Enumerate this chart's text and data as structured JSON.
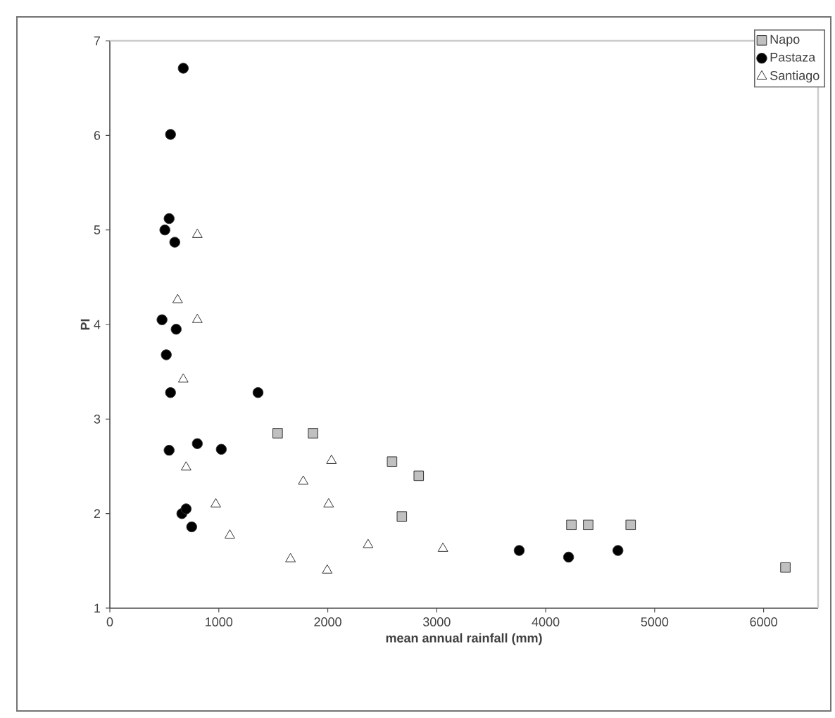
{
  "chart_data": {
    "type": "scatter",
    "xlabel": "mean annual rainfall (mm)",
    "ylabel": "PI",
    "xlim": [
      0,
      6500
    ],
    "ylim": [
      1,
      7
    ],
    "xticks": [
      0,
      1000,
      2000,
      3000,
      4000,
      5000,
      6000
    ],
    "yticks": [
      1,
      2,
      3,
      4,
      5,
      6,
      7
    ],
    "grid": false,
    "legend": "top right",
    "series": [
      {
        "name": "Napo",
        "color": "#c0c0c0",
        "marker": "square",
        "x": [
          1540,
          1865,
          2590,
          2835,
          2680,
          4236,
          4390,
          4780,
          6200
        ],
        "values": [
          2.85,
          2.85,
          2.55,
          2.4,
          1.97,
          1.88,
          1.88,
          1.88,
          1.43
        ]
      },
      {
        "name": "Pastaza",
        "color": "#000000",
        "marker": "circle",
        "x": [
          674,
          557,
          544,
          505,
          596,
          479,
          609,
          518,
          557,
          1360,
          544,
          803,
          1023,
          661,
          700,
          751,
          3757,
          4210,
          4663
        ],
        "values": [
          6.71,
          6.01,
          5.12,
          5.0,
          4.87,
          4.05,
          3.95,
          3.68,
          3.28,
          3.28,
          2.67,
          2.74,
          2.68,
          2.0,
          2.05,
          1.86,
          1.61,
          1.54,
          1.61
        ]
      },
      {
        "name": "Santiago",
        "color": "#ffffff",
        "marker": "triangle",
        "x": [
          803,
          622,
          803,
          674,
          700,
          972,
          1101,
          1658,
          1995,
          1775,
          2034,
          2008,
          2370,
          3057
        ],
        "values": [
          4.95,
          4.26,
          4.05,
          3.42,
          2.49,
          2.1,
          1.77,
          1.52,
          1.4,
          2.34,
          2.56,
          2.1,
          1.67,
          1.63
        ]
      }
    ]
  }
}
